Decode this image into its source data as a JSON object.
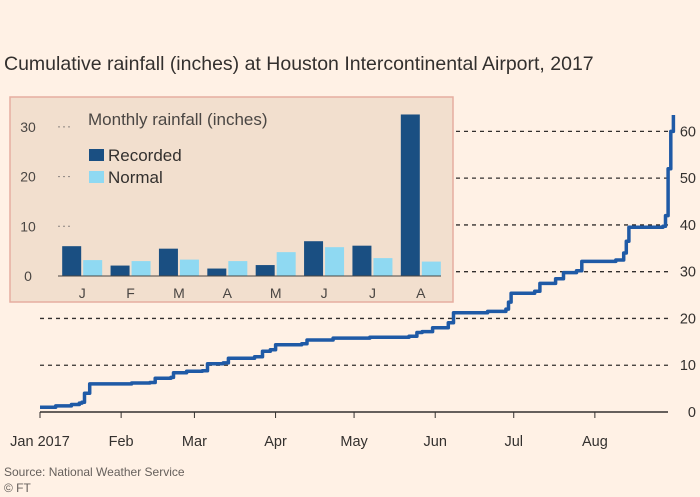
{
  "title": "Cumulative rainfall (inches) at Houston Intercontinental Airport, 2017",
  "source": "Source: National Weather Service",
  "credit": "© FT",
  "colors": {
    "background": "#fff1e5",
    "line": "#1f5aa6",
    "recorded": "#1a4f82",
    "normal": "#8fd9f2",
    "inset_bg": "#f2dfce",
    "inset_border": "#e6aea0"
  },
  "chart_data": [
    {
      "type": "line",
      "title": "Cumulative rainfall (inches) at Houston Intercontinental Airport, 2017",
      "x_ticks": [
        "Jan 2017",
        "Feb",
        "Mar",
        "Apr",
        "May",
        "Jun",
        "Jul",
        "Aug"
      ],
      "x_tick_days": [
        0,
        31,
        59,
        90,
        120,
        151,
        181,
        212
      ],
      "xlim": [
        0,
        243
      ],
      "ylim": [
        0,
        65
      ],
      "y_ticks": [
        0,
        10,
        20,
        30,
        40,
        50,
        60
      ],
      "grid": "horizontal dashed",
      "series": [
        {
          "points": [
            [
              0,
              1.0
            ],
            [
              6,
              1.3
            ],
            [
              12,
              1.6
            ],
            [
              15,
              1.9
            ],
            [
              16,
              2.1
            ],
            [
              17,
              4.0
            ],
            [
              19,
              6.0
            ],
            [
              35,
              6.2
            ],
            [
              42,
              6.3
            ],
            [
              44,
              7.2
            ],
            [
              50,
              7.4
            ],
            [
              51,
              8.4
            ],
            [
              56,
              8.7
            ],
            [
              62,
              8.8
            ],
            [
              64,
              10.3
            ],
            [
              70,
              10.5
            ],
            [
              72,
              11.5
            ],
            [
              82,
              11.8
            ],
            [
              85,
              13.0
            ],
            [
              88,
              13.3
            ],
            [
              90,
              14.4
            ],
            [
              100,
              14.6
            ],
            [
              102,
              15.4
            ],
            [
              112,
              15.8
            ],
            [
              126,
              16.0
            ],
            [
              141,
              16.2
            ],
            [
              144,
              17.0
            ],
            [
              146,
              17.2
            ],
            [
              150,
              18.0
            ],
            [
              156,
              19.1
            ],
            [
              158,
              21.2
            ],
            [
              171,
              21.5
            ],
            [
              178,
              22.0
            ],
            [
              179,
              23.5
            ],
            [
              180,
              25.4
            ],
            [
              189,
              25.8
            ],
            [
              191,
              27.5
            ],
            [
              197,
              28.5
            ],
            [
              200,
              29.8
            ],
            [
              205,
              30.2
            ],
            [
              207,
              32.2
            ],
            [
              220,
              32.5
            ],
            [
              223,
              34.0
            ],
            [
              224,
              36.5
            ],
            [
              225,
              39.5
            ],
            [
              238,
              39.7
            ],
            [
              239,
              42.0
            ],
            [
              240,
              52.0
            ],
            [
              241,
              60.0
            ],
            [
              242,
              63.5
            ]
          ]
        }
      ]
    },
    {
      "type": "bar",
      "title": "Monthly rainfall (inches)",
      "categories": [
        "J",
        "F",
        "M",
        "A",
        "M",
        "J",
        "J",
        "A"
      ],
      "ylim": [
        0,
        33
      ],
      "y_ticks": [
        0,
        10,
        20,
        30
      ],
      "legend": "top-left",
      "series": [
        {
          "name": "Recorded",
          "values": [
            6.0,
            2.1,
            5.5,
            1.5,
            2.2,
            7.0,
            6.1,
            32.5
          ]
        },
        {
          "name": "Normal",
          "values": [
            3.2,
            3.0,
            3.3,
            3.0,
            4.8,
            5.8,
            3.6,
            2.9
          ]
        }
      ]
    }
  ]
}
